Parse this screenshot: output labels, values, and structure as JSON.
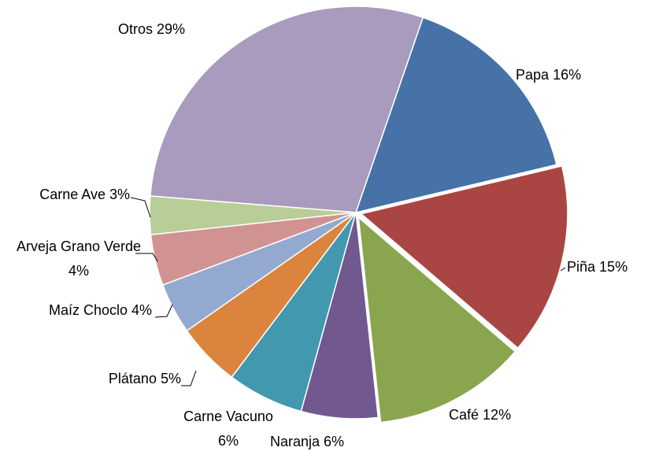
{
  "chart_data": {
    "type": "pie",
    "categories": [
      "Papa",
      "Piña",
      "Café",
      "Naranja",
      "Carne Vacuno",
      "Plátano",
      "Maíz Choclo",
      "Arveja Grano Verde",
      "Carne Ave",
      "Otros"
    ],
    "values": [
      16,
      15,
      12,
      6,
      6,
      5,
      4,
      4,
      3,
      29
    ],
    "value_labels": [
      "16%",
      "15%",
      "12%",
      "6%",
      "6%",
      "5%",
      "4%",
      "4%",
      "3%",
      "29%"
    ],
    "colors": [
      "#4672a8",
      "#a94643",
      "#89a54e",
      "#71588f",
      "#4298af",
      "#db843d",
      "#93a9cf",
      "#d19392",
      "#b9cd96",
      "#a99bbd"
    ]
  }
}
